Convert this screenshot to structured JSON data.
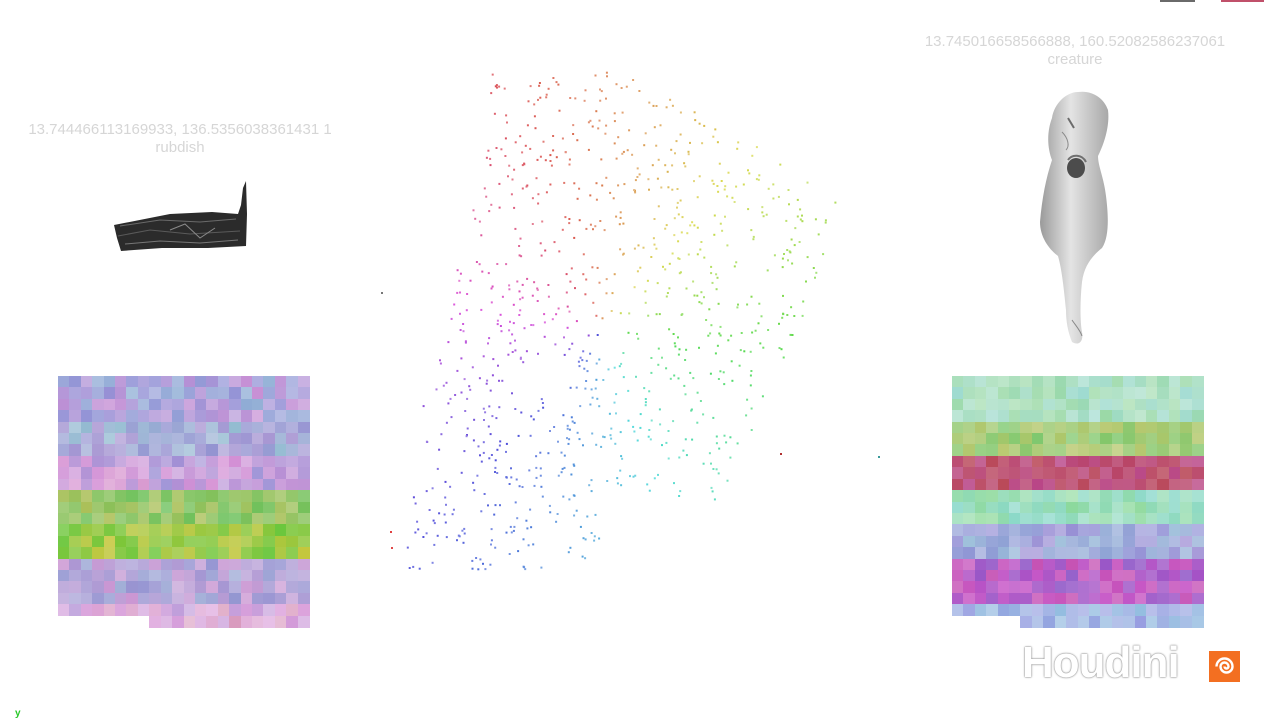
{
  "left_panel": {
    "caption_line1": "13.744466113169933, 136.5356038361431 1",
    "caption_line2": "rubdish"
  },
  "right_panel": {
    "caption_line1": "13.745016658566888, 160.52082586237061",
    "caption_line2": "creature"
  },
  "axis": {
    "y_label": "y"
  },
  "logo": {
    "text": "Houdini",
    "badge_icon": "houdini-swirl-icon",
    "badge_color": "#f36f21"
  },
  "colors": {
    "background": "#ffffff",
    "caption_text": "#d6d6d6",
    "top_button_grey": "#6a6a6a",
    "top_button_red": "#c0506a",
    "axis_green": "#28c828"
  }
}
